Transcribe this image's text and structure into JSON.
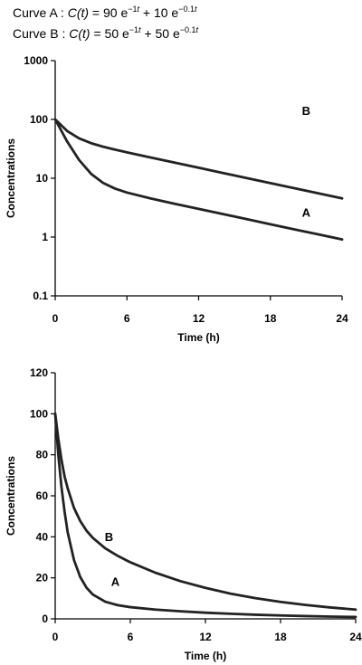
{
  "equations": {
    "a": {
      "prefix": "Curve A : ",
      "func": "C(t)",
      "eq": " = 90 e",
      "exp1": "−1",
      "exp1_var": "t",
      "mid": " + 10 e",
      "exp2": "−0.1",
      "exp2_var": "t"
    },
    "b": {
      "prefix": "Curve B : ",
      "func": "C(t)",
      "eq": " = 50 e",
      "exp1": "−1",
      "exp1_var": "t",
      "mid": " + 50 e",
      "exp2": "−0.1",
      "exp2_var": "t"
    }
  },
  "chart_data": [
    {
      "type": "line",
      "yscale": "log",
      "xlabel": "Time (h)",
      "ylabel": "Concentrations",
      "xlim": [
        0,
        24
      ],
      "ylim": [
        0.1,
        1000
      ],
      "xticks": [
        0,
        6,
        12,
        18,
        24
      ],
      "yticks": [
        0.1,
        1,
        10,
        100,
        1000
      ],
      "ytick_labels": [
        "0.1",
        "1",
        "10",
        "100",
        "1000"
      ],
      "grid": false,
      "x": [
        0,
        1,
        2,
        3,
        4,
        5,
        6,
        8,
        10,
        12,
        14,
        16,
        18,
        20,
        22,
        24
      ],
      "series": [
        {
          "name": "A",
          "values": [
            100,
            42.1,
            20.4,
            11.9,
            8.35,
            6.67,
            5.71,
            4.52,
            3.68,
            3.01,
            2.47,
            2.02,
            1.65,
            1.35,
            1.11,
            0.91
          ]
        },
        {
          "name": "B",
          "values": [
            100,
            63.6,
            47.7,
            39.5,
            34.4,
            30.7,
            27.6,
            22.5,
            18.4,
            15.1,
            12.3,
            10.1,
            8.27,
            6.77,
            5.54,
            4.54
          ]
        }
      ],
      "annotations": [
        {
          "text": "B",
          "x": 21,
          "y": 120
        },
        {
          "text": "A",
          "x": 21,
          "y": 2.2
        }
      ],
      "color": "#222222"
    },
    {
      "type": "line",
      "yscale": "linear",
      "xlabel": "Time (h)",
      "ylabel": "Concentrations",
      "xlim": [
        0,
        24
      ],
      "ylim": [
        0,
        120
      ],
      "xticks": [
        0,
        6,
        12,
        18,
        24
      ],
      "yticks": [
        0,
        20,
        40,
        60,
        80,
        100,
        120
      ],
      "ytick_labels": [
        "0",
        "20",
        "40",
        "60",
        "80",
        "100",
        "120"
      ],
      "grid": false,
      "x": [
        0,
        0.25,
        0.5,
        0.75,
        1,
        1.5,
        2,
        2.5,
        3,
        4,
        5,
        6,
        8,
        10,
        12,
        14,
        16,
        18,
        20,
        22,
        24
      ],
      "series": [
        {
          "name": "A",
          "values": [
            100,
            79.9,
            64.3,
            52.2,
            42.1,
            28.7,
            20.4,
            15.2,
            11.9,
            8.35,
            6.67,
            5.71,
            4.52,
            3.68,
            3.01,
            2.47,
            2.02,
            1.65,
            1.35,
            1.11,
            0.91
          ]
        },
        {
          "name": "B",
          "values": [
            100,
            87.7,
            77.6,
            69.4,
            63.6,
            54.1,
            47.7,
            43.0,
            39.5,
            34.4,
            30.7,
            27.6,
            22.5,
            18.4,
            15.1,
            12.3,
            10.1,
            8.27,
            6.77,
            5.54,
            4.54
          ]
        }
      ],
      "annotations": [
        {
          "text": "B",
          "x": 4.3,
          "y": 38
        },
        {
          "text": "A",
          "x": 4.8,
          "y": 16
        }
      ],
      "color": "#222222"
    }
  ]
}
